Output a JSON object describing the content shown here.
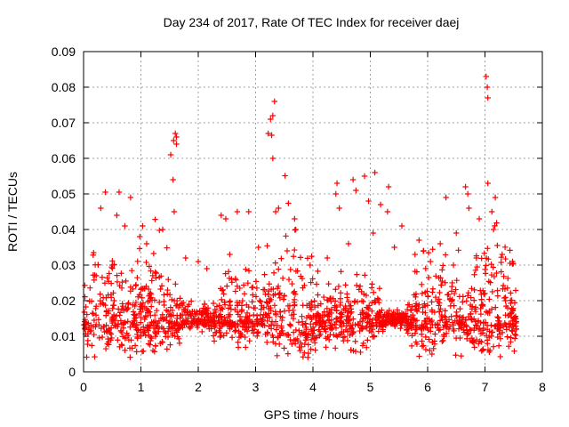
{
  "chart_data": {
    "type": "scatter",
    "title": "Day 234 of 2017, Rate Of TEC Index for receiver daej",
    "xlabel": "GPS time / hours",
    "ylabel": "ROTI / TECUs",
    "xlim": [
      0,
      8
    ],
    "ylim": [
      0,
      0.09
    ],
    "xticks": [
      "0",
      "1",
      "2",
      "3",
      "4",
      "5",
      "6",
      "7",
      "8"
    ],
    "yticks": [
      "0",
      "0.01",
      "0.02",
      "0.03",
      "0.04",
      "0.05",
      "0.06",
      "0.07",
      "0.08",
      "0.09"
    ],
    "grid": true,
    "marker": "plus",
    "color": "#ff0000",
    "series": [
      {
        "points": [
          [
            0.38,
            0.0505
          ],
          [
            0.62,
            0.0505
          ],
          [
            0.58,
            0.044
          ],
          [
            0.82,
            0.049
          ],
          [
            0.72,
            0.041
          ],
          [
            0.98,
            0.038
          ],
          [
            1.03,
            0.041
          ],
          [
            1.38,
            0.04
          ],
          [
            1.52,
            0.061
          ],
          [
            1.57,
            0.065
          ],
          [
            1.6,
            0.067
          ],
          [
            1.62,
            0.066
          ],
          [
            1.56,
            0.054
          ],
          [
            1.58,
            0.045
          ],
          [
            1.62,
            0.064
          ],
          [
            2.4,
            0.044
          ],
          [
            2.48,
            0.043
          ],
          [
            2.68,
            0.045
          ],
          [
            2.88,
            0.045
          ],
          [
            3.22,
            0.067
          ],
          [
            3.26,
            0.071
          ],
          [
            3.3,
            0.072
          ],
          [
            3.33,
            0.076
          ],
          [
            3.28,
            0.0665
          ],
          [
            3.3,
            0.06
          ],
          [
            3.4,
            0.046
          ],
          [
            3.35,
            0.045
          ],
          [
            3.68,
            0.043
          ],
          [
            4.42,
            0.053
          ],
          [
            4.4,
            0.05
          ],
          [
            4.46,
            0.046
          ],
          [
            4.7,
            0.054
          ],
          [
            4.75,
            0.051
          ],
          [
            4.9,
            0.055
          ],
          [
            4.97,
            0.048
          ],
          [
            5.08,
            0.056
          ],
          [
            5.18,
            0.047
          ],
          [
            5.32,
            0.052
          ],
          [
            5.05,
            0.039
          ],
          [
            5.3,
            0.045
          ],
          [
            5.55,
            0.041
          ],
          [
            6.32,
            0.049
          ],
          [
            6.5,
            0.039
          ],
          [
            6.66,
            0.052
          ],
          [
            6.7,
            0.05
          ],
          [
            6.72,
            0.046
          ],
          [
            7.02,
            0.083
          ],
          [
            7.04,
            0.08
          ],
          [
            7.05,
            0.077
          ],
          [
            7.05,
            0.053
          ],
          [
            7.12,
            0.045
          ],
          [
            7.18,
            0.049
          ],
          [
            7.15,
            0.04
          ],
          [
            6.9,
            0.043
          ],
          [
            0.3,
            0.046
          ],
          [
            1.1,
            0.036
          ],
          [
            2.0,
            0.031
          ],
          [
            3.7,
            0.04
          ],
          [
            5.85,
            0.037
          ],
          [
            6.22,
            0.036
          ],
          [
            7.48,
            0.031
          ],
          [
            0.22,
            0.027
          ],
          [
            0.5,
            0.03
          ],
          [
            1.25,
            0.028
          ],
          [
            1.78,
            0.032
          ],
          [
            2.15,
            0.029
          ],
          [
            2.55,
            0.033
          ],
          [
            3.05,
            0.035
          ],
          [
            3.55,
            0.034
          ],
          [
            3.95,
            0.03
          ],
          [
            4.25,
            0.032
          ],
          [
            4.62,
            0.036
          ],
          [
            5.42,
            0.035
          ],
          [
            5.78,
            0.033
          ],
          [
            6.05,
            0.031
          ],
          [
            6.45,
            0.03
          ],
          [
            6.85,
            0.032
          ],
          [
            7.3,
            0.033
          ]
        ]
      },
      {
        "generated_bulk": true,
        "x_range": [
          0.0,
          7.55
        ],
        "y_center": 0.0145,
        "y_spread": 0.0085,
        "y_min": 0.004,
        "count": 1700
      }
    ]
  }
}
